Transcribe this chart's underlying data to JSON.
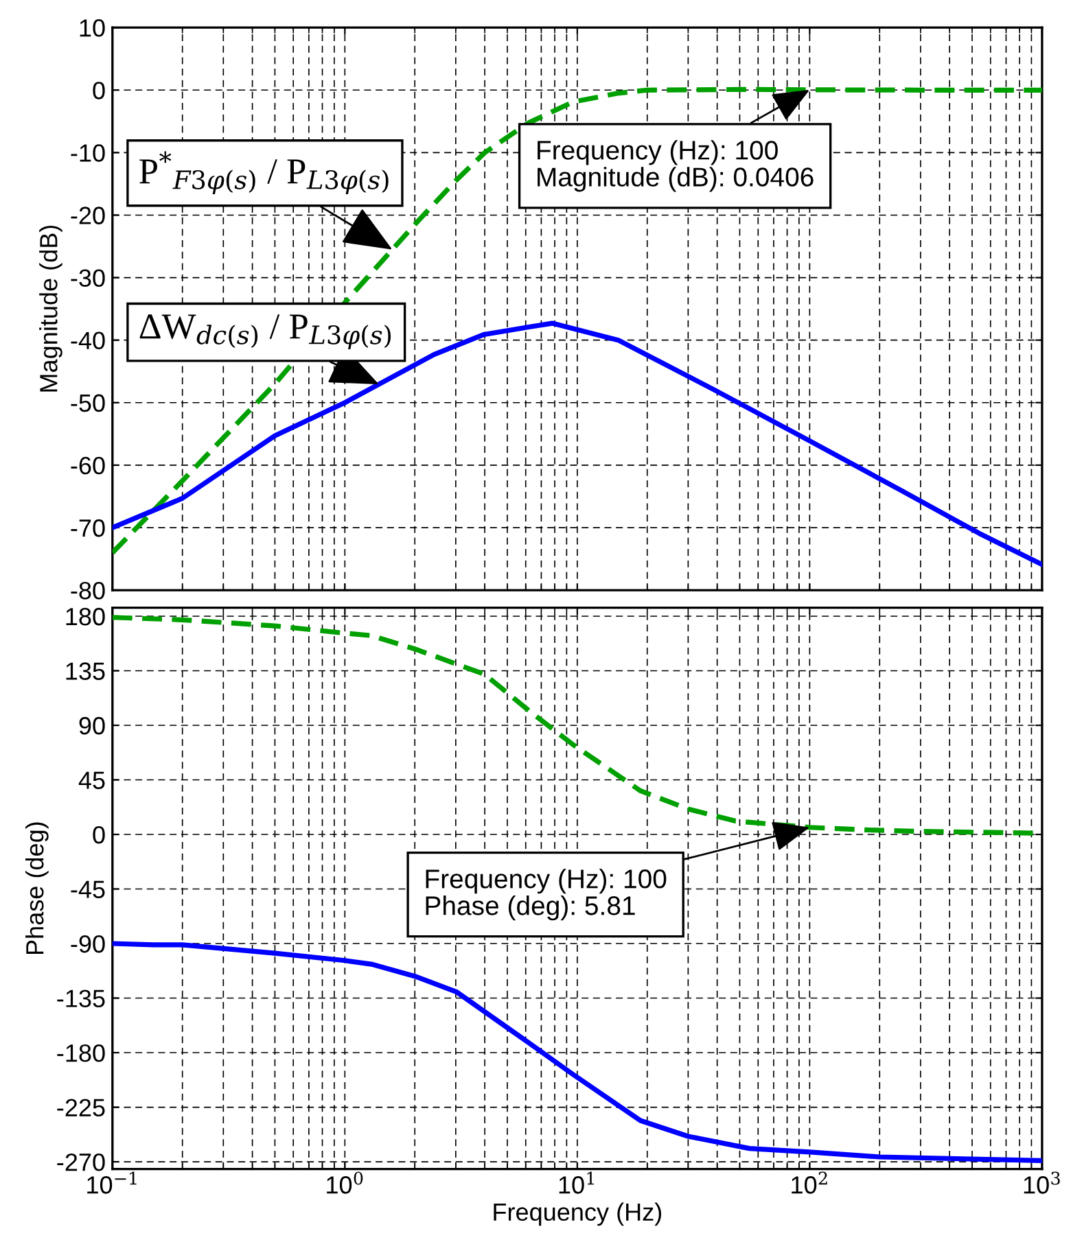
{
  "chart_data": [
    {
      "type": "line",
      "ylabel": "Magnitude (dB)",
      "log": "x",
      "grid": true,
      "tick_labels": "y",
      "xlim": [
        0.1,
        1000
      ],
      "ylim": [
        -80,
        10
      ],
      "xticks": [
        {
          "value": 0.1,
          "label": null
        },
        {
          "value": 1,
          "label": null
        },
        {
          "value": 10,
          "label": null
        },
        {
          "value": 100,
          "label": null
        },
        {
          "value": 1000,
          "label": null
        }
      ],
      "yticks": [
        -80,
        -70,
        -60,
        -50,
        -40,
        -30,
        -20,
        -10,
        0,
        10
      ],
      "series": [
        {
          "name": "P$^{*}$$_{F3φ(s)}$ / P$_{L3φ(s)}$",
          "color": "#00a000",
          "line_style": "dashed",
          "x": [
            0.1,
            0.2,
            0.5,
            1,
            2,
            3,
            4,
            6.2,
            9.6,
            15,
            20,
            50,
            100,
            300,
            1000
          ],
          "values": [
            -74,
            -62.5,
            -47,
            -34,
            -21.5,
            -14.5,
            -10,
            -5.2,
            -1.9,
            -0.5,
            0,
            0.1,
            0.0406,
            0,
            0
          ]
        },
        {
          "name": "ΔW$_{dc(s)}$ / P$_{L3φ(s)}$",
          "color": "#0000ff",
          "line_style": "solid",
          "x": [
            0.1,
            0.2,
            0.5,
            1,
            2.42,
            3.97,
            6.2,
            7.8,
            15,
            38.6,
            98.6,
            252,
            536,
            1000
          ],
          "values": [
            -70,
            -65.3,
            -55.3,
            -50,
            -42.3,
            -39.1,
            -37.9,
            -37.3,
            -40,
            -47.9,
            -56,
            -64.2,
            -70.9,
            -75.9
          ]
        }
      ],
      "annotations": [
        {
          "text": "Frequency (Hz): 100\nMagnitude (dB): 0.0406",
          "x": 100,
          "y": 0.0406
        }
      ]
    },
    {
      "type": "line",
      "xlabel": "Frequency (Hz)",
      "ylabel": "Phase (deg)",
      "log": "x",
      "grid": true,
      "xlim": [
        0.1,
        1000
      ],
      "ylim": [
        -276,
        187
      ],
      "xticks": [
        {
          "value": 0.1,
          "label": "10$^{−1}$"
        },
        {
          "value": 1,
          "label": "10$^{0}$"
        },
        {
          "value": 10,
          "label": "10$^{1}$"
        },
        {
          "value": 100,
          "label": "10$^{2}$"
        },
        {
          "value": 1000,
          "label": "10$^{3}$"
        }
      ],
      "yticks": [
        -270,
        -225,
        -180,
        -135,
        -90,
        -45,
        0,
        45,
        90,
        135,
        180
      ],
      "series": [
        {
          "color": "#00a000",
          "line_style": "dashed",
          "x": [
            0.1,
            0.2,
            0.5,
            1,
            1.3,
            2,
            4,
            6.2,
            9.6,
            18.7,
            30,
            48,
            100,
            175,
            300,
            1000
          ],
          "values": [
            179,
            177,
            172,
            166,
            164,
            153,
            132,
            102,
            74,
            36,
            21,
            11,
            5.81,
            3.7,
            2.5,
            1
          ]
        },
        {
          "color": "#0000ff",
          "line_style": "solid",
          "x": [
            0.1,
            0.15,
            0.2,
            0.5,
            1,
            1.3,
            2,
            3.03,
            6.2,
            9.6,
            18.7,
            30,
            55,
            100,
            200,
            1000
          ],
          "values": [
            -90,
            -91,
            -91,
            -98,
            -104,
            -107,
            -117,
            -130,
            -172,
            -198,
            -236,
            -249,
            -259,
            -262,
            -266,
            -269
          ]
        }
      ],
      "annotations": [
        {
          "text": "Frequency (Hz): 100\nPhase (deg): 5.81",
          "x": 100,
          "y": 5.81
        }
      ]
    }
  ]
}
